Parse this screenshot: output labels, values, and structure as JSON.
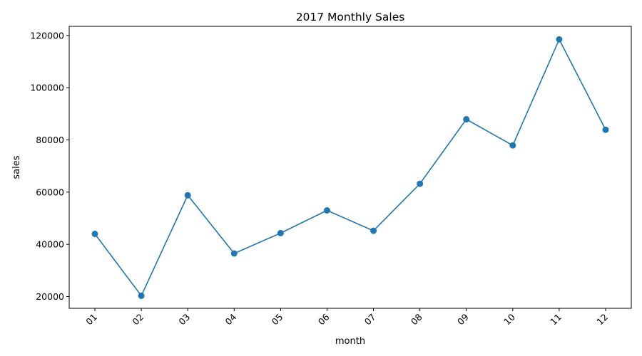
{
  "chart_data": {
    "type": "line",
    "title": "2017 Monthly Sales",
    "xlabel": "month",
    "ylabel": "sales",
    "categories": [
      "01",
      "02",
      "03",
      "04",
      "05",
      "06",
      "07",
      "08",
      "09",
      "10",
      "11",
      "12"
    ],
    "values": [
      44000,
      20300,
      58800,
      36500,
      44300,
      53000,
      45200,
      63200,
      87900,
      77900,
      118500,
      83900
    ],
    "ylim": [
      15500,
      123500
    ],
    "yticks": [
      20000,
      40000,
      60000,
      80000,
      100000,
      120000
    ],
    "ytick_labels": [
      "20000",
      "40000",
      "60000",
      "80000",
      "100000",
      "120000"
    ],
    "markers": true,
    "grid": false,
    "line_color": "#1f77b4"
  }
}
